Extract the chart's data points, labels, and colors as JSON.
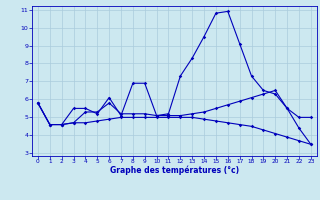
{
  "xlabel": "Graphe des températures (°c)",
  "background_color": "#cce8f0",
  "grid_color": "#aaccdd",
  "line_color": "#0000bb",
  "hours": [
    0,
    1,
    2,
    3,
    4,
    5,
    6,
    7,
    8,
    9,
    10,
    11,
    12,
    13,
    14,
    15,
    16,
    17,
    18,
    19,
    20,
    21,
    22,
    23
  ],
  "series1": [
    5.8,
    4.6,
    4.6,
    5.5,
    5.5,
    5.2,
    6.1,
    5.1,
    6.9,
    6.9,
    5.1,
    5.2,
    7.3,
    8.3,
    9.5,
    10.8,
    10.9,
    9.1,
    7.3,
    6.5,
    6.3,
    5.5,
    5.0,
    5.0
  ],
  "series2": [
    5.8,
    4.6,
    4.6,
    4.7,
    5.3,
    5.3,
    5.8,
    5.2,
    5.2,
    5.2,
    5.1,
    5.1,
    5.1,
    5.2,
    5.3,
    5.5,
    5.7,
    5.9,
    6.1,
    6.3,
    6.5,
    5.5,
    4.4,
    3.5
  ],
  "series3": [
    5.8,
    4.6,
    4.6,
    4.7,
    4.7,
    4.8,
    4.9,
    5.0,
    5.0,
    5.0,
    5.0,
    5.0,
    5.0,
    5.0,
    4.9,
    4.8,
    4.7,
    4.6,
    4.5,
    4.3,
    4.1,
    3.9,
    3.7,
    3.5
  ],
  "ylim_min": 3,
  "ylim_max": 11,
  "yticks": [
    3,
    4,
    5,
    6,
    7,
    8,
    9,
    10,
    11
  ],
  "xticks": [
    0,
    1,
    2,
    3,
    4,
    5,
    6,
    7,
    8,
    9,
    10,
    11,
    12,
    13,
    14,
    15,
    16,
    17,
    18,
    19,
    20,
    21,
    22,
    23
  ]
}
